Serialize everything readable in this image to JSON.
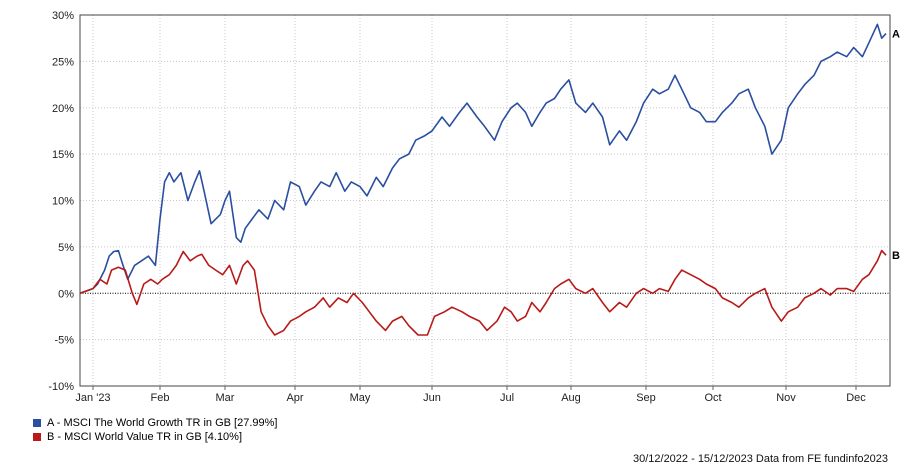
{
  "chart_data": {
    "type": "line",
    "x_ticks": [
      "Jan '23",
      "Feb",
      "Mar",
      "Apr",
      "May",
      "Jun",
      "Jul",
      "Aug",
      "Sep",
      "Oct",
      "Nov",
      "Dec"
    ],
    "y_ticks": [
      "-10%",
      "-5%",
      "0%",
      "5%",
      "10%",
      "15%",
      "20%",
      "25%",
      "30%"
    ],
    "ylim": [
      -10,
      30
    ],
    "xlim": [
      "2022-12-30",
      "2023-12-15"
    ],
    "grid": true,
    "legend_position": "bottom-left",
    "series": [
      {
        "name": "A - MSCI The World Growth TR in GB [27.99%]",
        "end_label": "A",
        "color": "#2a4ea0",
        "points": [
          [
            "2022-12-30",
            0.0
          ],
          [
            "2023-01-03",
            0.5
          ],
          [
            "2023-01-05",
            1.0
          ],
          [
            "2023-01-08",
            2.5
          ],
          [
            "2023-01-10",
            4.0
          ],
          [
            "2023-01-12",
            4.5
          ],
          [
            "2023-01-14",
            4.6
          ],
          [
            "2023-01-16",
            3.0
          ],
          [
            "2023-01-18",
            1.5
          ],
          [
            "2023-01-21",
            3.0
          ],
          [
            "2023-01-24",
            3.5
          ],
          [
            "2023-01-27",
            4.0
          ],
          [
            "2023-01-30",
            3.0
          ],
          [
            "2023-02-01",
            8.0
          ],
          [
            "2023-02-03",
            12.0
          ],
          [
            "2023-02-05",
            13.0
          ],
          [
            "2023-02-07",
            12.0
          ],
          [
            "2023-02-10",
            13.0
          ],
          [
            "2023-02-13",
            10.0
          ],
          [
            "2023-02-16",
            12.0
          ],
          [
            "2023-02-18",
            13.2
          ],
          [
            "2023-02-20",
            11.0
          ],
          [
            "2023-02-23",
            7.5
          ],
          [
            "2023-02-27",
            8.5
          ],
          [
            "2023-03-01",
            10.0
          ],
          [
            "2023-03-03",
            11.0
          ],
          [
            "2023-03-06",
            6.0
          ],
          [
            "2023-03-08",
            5.5
          ],
          [
            "2023-03-10",
            7.0
          ],
          [
            "2023-03-13",
            8.0
          ],
          [
            "2023-03-16",
            9.0
          ],
          [
            "2023-03-20",
            8.0
          ],
          [
            "2023-03-23",
            10.0
          ],
          [
            "2023-03-27",
            9.0
          ],
          [
            "2023-03-30",
            12.0
          ],
          [
            "2023-04-03",
            11.5
          ],
          [
            "2023-04-06",
            9.5
          ],
          [
            "2023-04-10",
            11.0
          ],
          [
            "2023-04-13",
            12.0
          ],
          [
            "2023-04-17",
            11.5
          ],
          [
            "2023-04-20",
            13.0
          ],
          [
            "2023-04-24",
            11.0
          ],
          [
            "2023-04-27",
            12.0
          ],
          [
            "2023-05-01",
            11.5
          ],
          [
            "2023-05-04",
            10.5
          ],
          [
            "2023-05-08",
            12.5
          ],
          [
            "2023-05-11",
            11.5
          ],
          [
            "2023-05-15",
            13.5
          ],
          [
            "2023-05-18",
            14.5
          ],
          [
            "2023-05-22",
            15.0
          ],
          [
            "2023-05-25",
            16.5
          ],
          [
            "2023-05-29",
            17.0
          ],
          [
            "2023-06-01",
            17.5
          ],
          [
            "2023-06-05",
            19.0
          ],
          [
            "2023-06-08",
            18.0
          ],
          [
            "2023-06-12",
            19.5
          ],
          [
            "2023-06-15",
            20.5
          ],
          [
            "2023-06-19",
            19.0
          ],
          [
            "2023-06-22",
            18.0
          ],
          [
            "2023-06-26",
            16.5
          ],
          [
            "2023-06-29",
            18.5
          ],
          [
            "2023-07-03",
            20.0
          ],
          [
            "2023-07-06",
            20.5
          ],
          [
            "2023-07-10",
            19.5
          ],
          [
            "2023-07-13",
            18.0
          ],
          [
            "2023-07-17",
            19.5
          ],
          [
            "2023-07-20",
            20.5
          ],
          [
            "2023-07-24",
            21.0
          ],
          [
            "2023-07-27",
            22.0
          ],
          [
            "2023-07-31",
            23.0
          ],
          [
            "2023-08-03",
            20.5
          ],
          [
            "2023-08-07",
            19.5
          ],
          [
            "2023-08-10",
            20.5
          ],
          [
            "2023-08-14",
            19.0
          ],
          [
            "2023-08-17",
            16.0
          ],
          [
            "2023-08-21",
            17.5
          ],
          [
            "2023-08-24",
            16.5
          ],
          [
            "2023-08-28",
            18.5
          ],
          [
            "2023-08-31",
            20.5
          ],
          [
            "2023-09-04",
            22.0
          ],
          [
            "2023-09-07",
            21.5
          ],
          [
            "2023-09-11",
            22.0
          ],
          [
            "2023-09-14",
            23.5
          ],
          [
            "2023-09-18",
            21.5
          ],
          [
            "2023-09-21",
            20.0
          ],
          [
            "2023-09-25",
            19.5
          ],
          [
            "2023-09-28",
            18.5
          ],
          [
            "2023-10-02",
            18.5
          ],
          [
            "2023-10-05",
            19.5
          ],
          [
            "2023-10-09",
            20.5
          ],
          [
            "2023-10-12",
            21.5
          ],
          [
            "2023-10-16",
            22.0
          ],
          [
            "2023-10-19",
            20.0
          ],
          [
            "2023-10-23",
            18.0
          ],
          [
            "2023-10-26",
            15.0
          ],
          [
            "2023-10-30",
            16.5
          ],
          [
            "2023-11-02",
            20.0
          ],
          [
            "2023-11-06",
            21.5
          ],
          [
            "2023-11-09",
            22.5
          ],
          [
            "2023-11-13",
            23.5
          ],
          [
            "2023-11-16",
            25.0
          ],
          [
            "2023-11-20",
            25.5
          ],
          [
            "2023-11-23",
            26.0
          ],
          [
            "2023-11-27",
            25.5
          ],
          [
            "2023-11-30",
            26.5
          ],
          [
            "2023-12-04",
            25.5
          ],
          [
            "2023-12-07",
            27.0
          ],
          [
            "2023-12-11",
            29.0
          ],
          [
            "2023-12-13",
            27.5
          ],
          [
            "2023-12-15",
            27.99
          ]
        ]
      },
      {
        "name": "B - MSCI World Value TR in GB [4.10%]",
        "end_label": "B",
        "color": "#b81a1a",
        "points": [
          [
            "2022-12-30",
            0.0
          ],
          [
            "2023-01-03",
            0.5
          ],
          [
            "2023-01-06",
            1.5
          ],
          [
            "2023-01-09",
            1.0
          ],
          [
            "2023-01-11",
            2.5
          ],
          [
            "2023-01-14",
            2.8
          ],
          [
            "2023-01-17",
            2.5
          ],
          [
            "2023-01-20",
            0.0
          ],
          [
            "2023-01-22",
            -1.2
          ],
          [
            "2023-01-25",
            1.0
          ],
          [
            "2023-01-28",
            1.5
          ],
          [
            "2023-01-31",
            1.0
          ],
          [
            "2023-02-02",
            1.5
          ],
          [
            "2023-02-05",
            2.0
          ],
          [
            "2023-02-08",
            3.0
          ],
          [
            "2023-02-11",
            4.5
          ],
          [
            "2023-02-14",
            3.5
          ],
          [
            "2023-02-17",
            4.0
          ],
          [
            "2023-02-19",
            4.2
          ],
          [
            "2023-02-22",
            3.0
          ],
          [
            "2023-02-25",
            2.5
          ],
          [
            "2023-02-28",
            2.0
          ],
          [
            "2023-03-03",
            3.0
          ],
          [
            "2023-03-06",
            1.0
          ],
          [
            "2023-03-09",
            3.0
          ],
          [
            "2023-03-11",
            3.5
          ],
          [
            "2023-03-14",
            2.5
          ],
          [
            "2023-03-17",
            -2.0
          ],
          [
            "2023-03-20",
            -3.5
          ],
          [
            "2023-03-23",
            -4.5
          ],
          [
            "2023-03-27",
            -4.0
          ],
          [
            "2023-03-30",
            -3.0
          ],
          [
            "2023-04-03",
            -2.5
          ],
          [
            "2023-04-06",
            -2.0
          ],
          [
            "2023-04-10",
            -1.5
          ],
          [
            "2023-04-14",
            -0.5
          ],
          [
            "2023-04-17",
            -1.5
          ],
          [
            "2023-04-21",
            -0.5
          ],
          [
            "2023-04-25",
            -1.0
          ],
          [
            "2023-04-28",
            0.0
          ],
          [
            "2023-05-02",
            -1.0
          ],
          [
            "2023-05-05",
            -2.0
          ],
          [
            "2023-05-08",
            -3.0
          ],
          [
            "2023-05-12",
            -4.0
          ],
          [
            "2023-05-15",
            -3.0
          ],
          [
            "2023-05-19",
            -2.5
          ],
          [
            "2023-05-22",
            -3.5
          ],
          [
            "2023-05-26",
            -4.5
          ],
          [
            "2023-05-30",
            -4.5
          ],
          [
            "2023-06-02",
            -2.5
          ],
          [
            "2023-06-06",
            -2.0
          ],
          [
            "2023-06-09",
            -1.5
          ],
          [
            "2023-06-13",
            -2.0
          ],
          [
            "2023-06-16",
            -2.5
          ],
          [
            "2023-06-20",
            -3.0
          ],
          [
            "2023-06-23",
            -4.0
          ],
          [
            "2023-06-27",
            -3.0
          ],
          [
            "2023-06-30",
            -1.5
          ],
          [
            "2023-07-03",
            -2.0
          ],
          [
            "2023-07-06",
            -3.0
          ],
          [
            "2023-07-10",
            -2.5
          ],
          [
            "2023-07-13",
            -1.0
          ],
          [
            "2023-07-17",
            -2.0
          ],
          [
            "2023-07-20",
            -1.0
          ],
          [
            "2023-07-24",
            0.5
          ],
          [
            "2023-07-27",
            1.0
          ],
          [
            "2023-07-31",
            1.5
          ],
          [
            "2023-08-03",
            0.5
          ],
          [
            "2023-08-07",
            0.0
          ],
          [
            "2023-08-10",
            0.5
          ],
          [
            "2023-08-14",
            -1.0
          ],
          [
            "2023-08-17",
            -2.0
          ],
          [
            "2023-08-21",
            -1.0
          ],
          [
            "2023-08-24",
            -1.5
          ],
          [
            "2023-08-28",
            0.0
          ],
          [
            "2023-08-31",
            0.5
          ],
          [
            "2023-09-04",
            0.0
          ],
          [
            "2023-09-07",
            0.5
          ],
          [
            "2023-09-11",
            0.2
          ],
          [
            "2023-09-14",
            1.5
          ],
          [
            "2023-09-17",
            2.5
          ],
          [
            "2023-09-21",
            2.0
          ],
          [
            "2023-09-25",
            1.5
          ],
          [
            "2023-09-28",
            1.0
          ],
          [
            "2023-10-02",
            0.5
          ],
          [
            "2023-10-05",
            -0.5
          ],
          [
            "2023-10-09",
            -1.0
          ],
          [
            "2023-10-12",
            -1.5
          ],
          [
            "2023-10-16",
            -0.5
          ],
          [
            "2023-10-19",
            0.0
          ],
          [
            "2023-10-23",
            0.5
          ],
          [
            "2023-10-26",
            -1.5
          ],
          [
            "2023-10-30",
            -3.0
          ],
          [
            "2023-11-02",
            -2.0
          ],
          [
            "2023-11-06",
            -1.5
          ],
          [
            "2023-11-09",
            -0.5
          ],
          [
            "2023-11-13",
            0.0
          ],
          [
            "2023-11-16",
            0.5
          ],
          [
            "2023-11-20",
            -0.2
          ],
          [
            "2023-11-23",
            0.5
          ],
          [
            "2023-11-27",
            0.5
          ],
          [
            "2023-11-30",
            0.2
          ],
          [
            "2023-12-04",
            1.5
          ],
          [
            "2023-12-07",
            2.0
          ],
          [
            "2023-12-11",
            3.5
          ],
          [
            "2023-12-13",
            4.6
          ],
          [
            "2023-12-15",
            4.1
          ]
        ]
      }
    ]
  },
  "footer": {
    "text": "30/12/2022 - 15/12/2023 Data from FE fundinfo2023"
  }
}
